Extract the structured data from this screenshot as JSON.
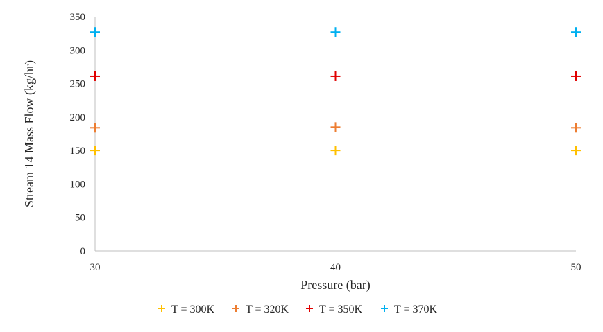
{
  "chart_data": {
    "type": "scatter",
    "title": "",
    "xlabel": "Pressure (bar)",
    "ylabel": "Stream 14 Mass Flow (kg/hr)",
    "xlim": [
      30,
      50
    ],
    "ylim": [
      0,
      350
    ],
    "x_ticks": [
      30,
      40,
      50
    ],
    "y_ticks": [
      0,
      50,
      100,
      150,
      200,
      250,
      300,
      350
    ],
    "grid": false,
    "legend_position": "bottom",
    "marker": "plus",
    "series": [
      {
        "name": "T = 300K",
        "color": "#FFC000",
        "x": [
          30,
          40,
          50
        ],
        "y": [
          150,
          150,
          150
        ]
      },
      {
        "name": "T = 320K",
        "color": "#ED7D31",
        "x": [
          30,
          40,
          50
        ],
        "y": [
          184,
          185,
          184
        ]
      },
      {
        "name": "T = 350K",
        "color": "#E00000",
        "x": [
          30,
          40,
          50
        ],
        "y": [
          261,
          261,
          261
        ]
      },
      {
        "name": "T = 370K",
        "color": "#00B0F0",
        "x": [
          30,
          40,
          50
        ],
        "y": [
          327,
          327,
          327
        ]
      }
    ]
  }
}
